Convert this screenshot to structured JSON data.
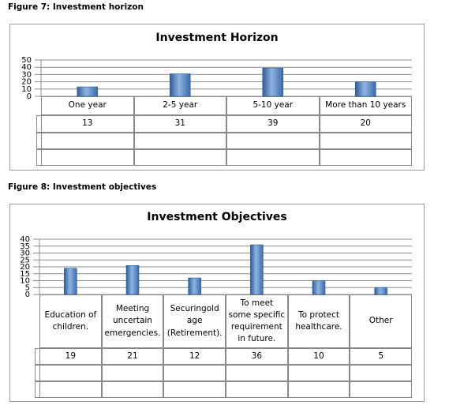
{
  "captions": [
    "Figure 7: Investment horizon",
    "Figure 8: Investment objectives"
  ],
  "chart_data": [
    {
      "type": "bar",
      "title": "Investment Horizon",
      "categories": [
        "One year",
        "2-5 year",
        "5-10 year",
        "More than 10 years"
      ],
      "values": [
        13,
        31,
        39,
        20
      ],
      "color": "#4f81bd",
      "ylim": [
        0,
        50
      ],
      "yticks": [
        0,
        10,
        20,
        30,
        40,
        50
      ],
      "grid": true
    },
    {
      "type": "bar",
      "title": "Investment Objectives",
      "categories": [
        "Education of children.",
        "Meeting uncertain emergencies.",
        "Securingold age (Retirement).",
        "To meet some specific requirement in future.",
        "To protect healthcare.",
        "Other"
      ],
      "values": [
        19,
        21,
        12,
        36,
        10,
        5
      ],
      "color": "#4f81bd",
      "ylim": [
        0,
        40
      ],
      "yticks": [
        0,
        5,
        10,
        15,
        20,
        25,
        30,
        35,
        40
      ],
      "grid": true
    }
  ]
}
